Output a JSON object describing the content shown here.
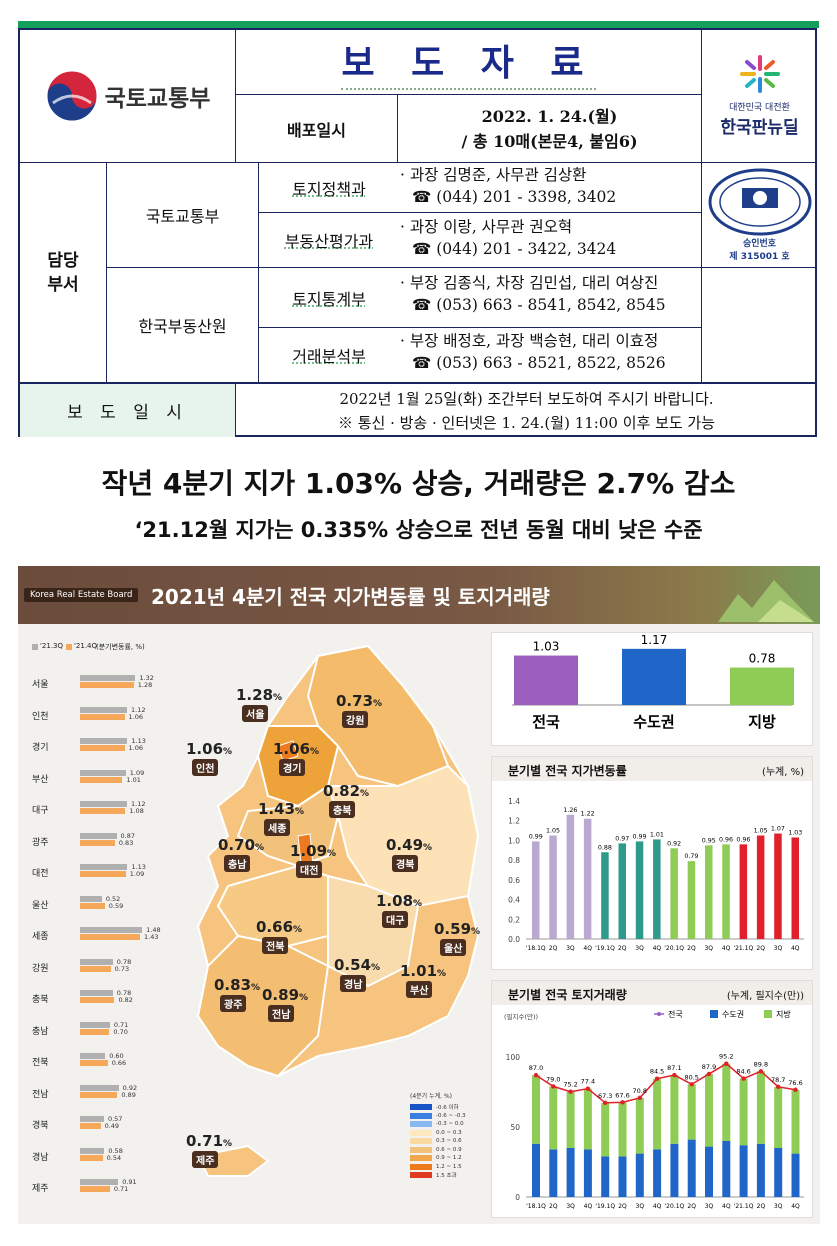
{
  "header": {
    "title": "보 도 자 료",
    "ministry_logo_text": "국토교통부",
    "release_label": "배포일시",
    "release_date": "2022. 1. 24.(월)",
    "release_pages": "/ 총 10매(본문4, 붙임6)",
    "newdeal_small": "대한민국 대전환",
    "newdeal_big": "한국판뉴딜",
    "stat_seal_text": "KOREA NATIONAL STATISTICS",
    "stat_approval": "승인번호",
    "stat_number": "제 315001 호"
  },
  "departments": {
    "label": "담당\n부서",
    "org1": "국토교통부",
    "org2": "한국부동산원",
    "rows": [
      {
        "dept": "토지정책과",
        "line1": "· 과장 김명준, 사무관 김상환",
        "line2": "☎ (044) 201 - 3398, 3402"
      },
      {
        "dept": "부동산평가과",
        "line1": "· 과장 이랑, 사무관 권오혁",
        "line2": "☎ (044) 201 - 3422, 3424"
      },
      {
        "dept": "토지통계부",
        "line1": "· 부장 김종식, 차장 김민섭, 대리 여상진",
        "line2": "☎ (053) 663 - 8541, 8542, 8545"
      },
      {
        "dept": "거래분석부",
        "line1": "· 부장 배정호, 과장 백승현, 대리 이효정",
        "line2": "☎ (053) 663 - 8521, 8522, 8526"
      }
    ]
  },
  "embargo": {
    "label": "보 도 일 시",
    "line1": "2022년 1월 25일(화) 조간부터 보도하여 주시기 바랍니다.",
    "line2": "※ 통신 · 방송 · 인터넷은 1. 24.(월) 11:00 이후 보도 가능"
  },
  "headline": "작년 4분기 지가 1.03% 상승, 거래량은 2.7% 감소",
  "subheadline": "‘21.12월 지가는 0.335% 상승으로 전년 동월 대비 낮은 수준",
  "infographic": {
    "badge": "Korea Real Estate Board",
    "title": "2021년 4분기 전국 지가변동률 및 토지거래량",
    "colors": {
      "q3": "#b0b0b0",
      "q4": "#f5a85a",
      "purple": "#9b5fc0",
      "blue": "#1f66c8",
      "green": "#8fcc55",
      "red": "#e0202a",
      "gray_bar": "#b9a8cf"
    }
  },
  "region_chart": {
    "legend_q3": "'21.3Q",
    "legend_q4": "'21.4Q",
    "legend_unit": "(분기변동률, %)",
    "regions": [
      {
        "name": "서울",
        "q3": 1.32,
        "q4": 1.28
      },
      {
        "name": "인천",
        "q3": 1.12,
        "q4": 1.06
      },
      {
        "name": "경기",
        "q3": 1.13,
        "q4": 1.06
      },
      {
        "name": "부산",
        "q3": 1.09,
        "q4": 1.01
      },
      {
        "name": "대구",
        "q3": 1.12,
        "q4": 1.08
      },
      {
        "name": "광주",
        "q3": 0.87,
        "q4": 0.83
      },
      {
        "name": "대전",
        "q3": 1.13,
        "q4": 1.09
      },
      {
        "name": "울산",
        "q3": 0.52,
        "q4": 0.59
      },
      {
        "name": "세종",
        "q3": 1.48,
        "q4": 1.43
      },
      {
        "name": "강원",
        "q3": 0.78,
        "q4": 0.73
      },
      {
        "name": "충북",
        "q3": 0.78,
        "q4": 0.82
      },
      {
        "name": "충남",
        "q3": 0.71,
        "q4": 0.7
      },
      {
        "name": "전북",
        "q3": 0.6,
        "q4": 0.66
      },
      {
        "name": "전남",
        "q3": 0.92,
        "q4": 0.89
      },
      {
        "name": "경북",
        "q3": 0.57,
        "q4": 0.49
      },
      {
        "name": "경남",
        "q3": 0.58,
        "q4": 0.54
      },
      {
        "name": "제주",
        "q3": 0.91,
        "q4": 0.71
      }
    ]
  },
  "map": {
    "labels": [
      {
        "name": "서울",
        "value": "1.28"
      },
      {
        "name": "강원",
        "value": "0.73"
      },
      {
        "name": "인천",
        "value": "1.06"
      },
      {
        "name": "경기",
        "value": "1.06"
      },
      {
        "name": "충북",
        "value": "0.82"
      },
      {
        "name": "세종",
        "value": "1.43"
      },
      {
        "name": "충남",
        "value": "0.70"
      },
      {
        "name": "대전",
        "value": "1.09"
      },
      {
        "name": "경북",
        "value": "0.49"
      },
      {
        "name": "대구",
        "value": "1.08"
      },
      {
        "name": "전북",
        "value": "0.66"
      },
      {
        "name": "울산",
        "value": "0.59"
      },
      {
        "name": "경남",
        "value": "0.54"
      },
      {
        "name": "부산",
        "value": "1.01"
      },
      {
        "name": "광주",
        "value": "0.83"
      },
      {
        "name": "전남",
        "value": "0.89"
      },
      {
        "name": "제주",
        "value": "0.71"
      }
    ],
    "pct_sign": "%",
    "legend_title": "(4분기 누계, %)",
    "legend_items": [
      {
        "label": "-0.6 이하",
        "color": "#1a55c8"
      },
      {
        "label": "-0.6 ~ -0.3",
        "color": "#3a7ee0"
      },
      {
        "label": "-0.3 ~ 0.0",
        "color": "#8ab8f0"
      },
      {
        "label": "0.0 ~ 0.3",
        "color": "#fde9c0"
      },
      {
        "label": "0.3 ~ 0.6",
        "color": "#f9d9a0"
      },
      {
        "label": "0.6 ~ 0.9",
        "color": "#f3c27a"
      },
      {
        "label": "0.9 ~ 1.2",
        "color": "#f0a64a"
      },
      {
        "label": "1.2 ~ 1.5",
        "color": "#ee7a20"
      },
      {
        "label": "1.5 초과",
        "color": "#e03a20"
      }
    ]
  },
  "chart_data": [
    {
      "type": "bar",
      "categories": [
        "전국",
        "수도권",
        "지방"
      ],
      "values": [
        1.03,
        1.17,
        0.78
      ]
    },
    {
      "type": "bar",
      "title": "분기별 전국 지가변동률",
      "unit": "(누계, %)",
      "categories": [
        "'18.1Q",
        "2Q",
        "3Q",
        "4Q",
        "'19.1Q",
        "2Q",
        "3Q",
        "4Q",
        "'20.1Q",
        "2Q",
        "3Q",
        "4Q",
        "'21.1Q",
        "2Q",
        "3Q",
        "4Q"
      ],
      "values": [
        0.99,
        1.05,
        1.26,
        1.22,
        0.88,
        0.97,
        0.99,
        1.01,
        0.92,
        0.79,
        0.95,
        0.96,
        0.96,
        1.05,
        1.07,
        1.03
      ],
      "ylim": [
        0,
        1.4
      ],
      "yticks": [
        "0.0",
        "0.2",
        "0.4",
        "0.6",
        "0.8",
        "1.0",
        "1.2",
        "1.4"
      ]
    },
    {
      "type": "bar",
      "title": "분기별 전국 토지거래량",
      "unit": "(누계, 필지수(만))",
      "ylabel": "(필지수(만))",
      "categories": [
        "'18.1Q",
        "2Q",
        "3Q",
        "4Q",
        "'19.1Q",
        "2Q",
        "3Q",
        "4Q",
        "'20.1Q",
        "2Q",
        "3Q",
        "4Q",
        "'21.1Q",
        "2Q",
        "3Q",
        "4Q"
      ],
      "series": [
        {
          "name": "전국",
          "values": [
            87.0,
            79.0,
            75.2,
            77.4,
            67.3,
            67.6,
            70.8,
            84.5,
            87.1,
            80.5,
            87.9,
            95.2,
            84.6,
            89.8,
            78.7,
            76.6
          ]
        },
        {
          "name": "수도권",
          "values": [
            38,
            34,
            35,
            34,
            29,
            29,
            31,
            34,
            38,
            41,
            36,
            40,
            37,
            38,
            35,
            31
          ]
        },
        {
          "name": "지방",
          "values": [
            49,
            45,
            40.2,
            43.4,
            38.3,
            38.6,
            39.8,
            50.5,
            49.1,
            39.5,
            51.9,
            55.2,
            47.6,
            51.8,
            43.7,
            45.6
          ]
        }
      ],
      "ylim": [
        0,
        100
      ],
      "yticks": [
        "0",
        "50",
        "100"
      ]
    }
  ]
}
